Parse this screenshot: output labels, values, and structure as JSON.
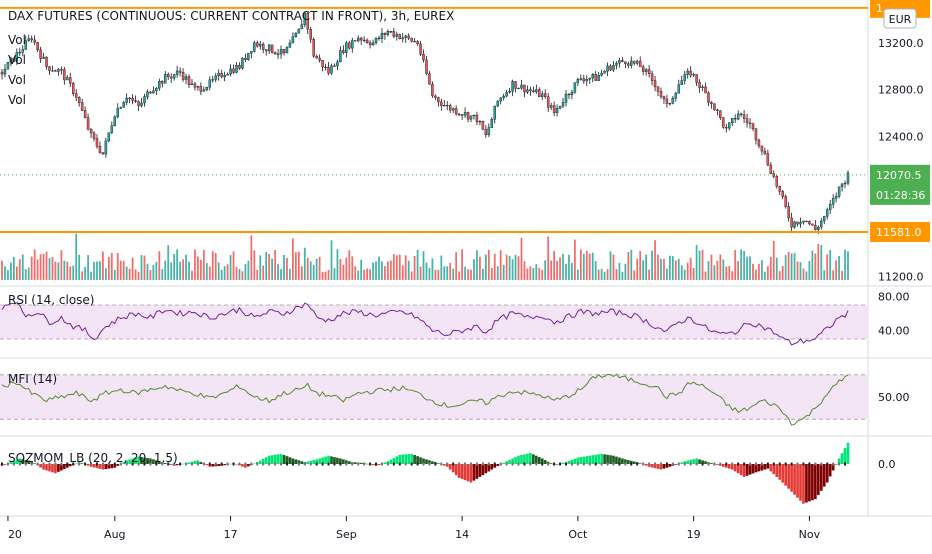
{
  "header": {
    "title": "DAX FUTURES (CONTINUOUS: CURRENT CONTRACT IN FRONT), 3h, EUREX"
  },
  "currency": "EUR",
  "volume_labels": [
    "Vol",
    "Vol",
    "Vol",
    "Vol"
  ],
  "price_tags": {
    "top_line": "1",
    "last_price": "12070.5",
    "countdown": "01:28:36",
    "support_line": "11581.0"
  },
  "colors": {
    "up": "#26a69a",
    "down": "#ef5350",
    "line": "#ff9800",
    "rsi": "#7b1fa2",
    "mfi": "#558b2f",
    "band": "#f3e5f5",
    "mom_up": "#00e676",
    "mom_down": "#e53935",
    "tag_green": "#4caf50"
  },
  "x_axis": [
    "20",
    "Aug",
    "17",
    "Sep",
    "14",
    "Oct",
    "19",
    "Nov"
  ],
  "chart_data": [
    {
      "type": "candlestick",
      "title": "DAX FUTURES (CONTINUOUS: CURRENT CONTRACT IN FRONT), 3h, EUREX",
      "y_ticks": [
        "13200.0",
        "12800.0",
        "12400.0",
        "11200.0"
      ],
      "ylim": [
        11170,
        13550
      ],
      "horizontal_lines": [
        13500,
        11581.0
      ],
      "last_price": 12070.5,
      "anchors": [
        [
          0,
          12950
        ],
        [
          5,
          13100
        ],
        [
          10,
          13250
        ],
        [
          15,
          13000
        ],
        [
          20,
          12950
        ],
        [
          25,
          12750
        ],
        [
          30,
          12400
        ],
        [
          34,
          12250
        ],
        [
          38,
          12600
        ],
        [
          42,
          12750
        ],
        [
          46,
          12650
        ],
        [
          50,
          12800
        ],
        [
          55,
          12900
        ],
        [
          60,
          12950
        ],
        [
          65,
          12800
        ],
        [
          70,
          12850
        ],
        [
          75,
          12950
        ],
        [
          80,
          13000
        ],
        [
          85,
          13200
        ],
        [
          90,
          13150
        ],
        [
          95,
          13100
        ],
        [
          100,
          13300
        ],
        [
          102,
          13450
        ],
        [
          105,
          13100
        ],
        [
          110,
          12950
        ],
        [
          115,
          13150
        ],
        [
          120,
          13250
        ],
        [
          125,
          13200
        ],
        [
          130,
          13300
        ],
        [
          135,
          13250
        ],
        [
          140,
          13200
        ],
        [
          145,
          12750
        ],
        [
          150,
          12650
        ],
        [
          155,
          12600
        ],
        [
          160,
          12550
        ],
        [
          163,
          12400
        ],
        [
          167,
          12700
        ],
        [
          172,
          12850
        ],
        [
          177,
          12800
        ],
        [
          182,
          12750
        ],
        [
          186,
          12600
        ],
        [
          190,
          12750
        ],
        [
          195,
          12900
        ],
        [
          200,
          12900
        ],
        [
          205,
          13000
        ],
        [
          210,
          13050
        ],
        [
          215,
          13000
        ],
        [
          220,
          12850
        ],
        [
          224,
          12650
        ],
        [
          228,
          12850
        ],
        [
          232,
          12950
        ],
        [
          236,
          12800
        ],
        [
          240,
          12650
        ],
        [
          244,
          12450
        ],
        [
          248,
          12600
        ],
        [
          252,
          12500
        ],
        [
          256,
          12300
        ],
        [
          260,
          12050
        ],
        [
          263,
          11850
        ],
        [
          266,
          11650
        ],
        [
          270,
          11700
        ],
        [
          274,
          11600
        ],
        [
          278,
          11750
        ],
        [
          282,
          11950
        ],
        [
          285,
          12070.5
        ]
      ],
      "volume_ylim": [
        0,
        1600
      ]
    },
    {
      "type": "line",
      "title": "RSI (14, close)",
      "y_ticks": [
        "80.00",
        "40.00"
      ],
      "ylim": [
        10,
        90
      ],
      "band": [
        30,
        70
      ],
      "anchors": [
        [
          0,
          68
        ],
        [
          4,
          75
        ],
        [
          8,
          58
        ],
        [
          12,
          62
        ],
        [
          16,
          50
        ],
        [
          20,
          55
        ],
        [
          24,
          45
        ],
        [
          28,
          40
        ],
        [
          31,
          30
        ],
        [
          35,
          45
        ],
        [
          40,
          55
        ],
        [
          45,
          60
        ],
        [
          50,
          55
        ],
        [
          55,
          65
        ],
        [
          60,
          60
        ],
        [
          65,
          62
        ],
        [
          70,
          55
        ],
        [
          75,
          60
        ],
        [
          80,
          65
        ],
        [
          85,
          55
        ],
        [
          90,
          62
        ],
        [
          95,
          60
        ],
        [
          100,
          68
        ],
        [
          103,
          72
        ],
        [
          106,
          55
        ],
        [
          110,
          52
        ],
        [
          115,
          60
        ],
        [
          120,
          62
        ],
        [
          125,
          58
        ],
        [
          130,
          60
        ],
        [
          135,
          62
        ],
        [
          140,
          55
        ],
        [
          145,
          40
        ],
        [
          150,
          35
        ],
        [
          155,
          40
        ],
        [
          160,
          45
        ],
        [
          163,
          38
        ],
        [
          167,
          52
        ],
        [
          172,
          60
        ],
        [
          177,
          55
        ],
        [
          182,
          58
        ],
        [
          186,
          50
        ],
        [
          190,
          55
        ],
        [
          195,
          62
        ],
        [
          200,
          60
        ],
        [
          205,
          62
        ],
        [
          210,
          60
        ],
        [
          215,
          55
        ],
        [
          220,
          45
        ],
        [
          224,
          38
        ],
        [
          228,
          50
        ],
        [
          232,
          55
        ],
        [
          236,
          45
        ],
        [
          240,
          38
        ],
        [
          244,
          35
        ],
        [
          248,
          40
        ],
        [
          252,
          50
        ],
        [
          256,
          45
        ],
        [
          260,
          38
        ],
        [
          263,
          30
        ],
        [
          266,
          25
        ],
        [
          270,
          28
        ],
        [
          274,
          30
        ],
        [
          278,
          42
        ],
        [
          282,
          55
        ],
        [
          285,
          60
        ]
      ]
    },
    {
      "type": "line",
      "title": "MFI (14)",
      "y_ticks": [
        "50.00"
      ],
      "ylim": [
        0,
        100
      ],
      "band": [
        20,
        80
      ],
      "anchors": [
        [
          0,
          65
        ],
        [
          5,
          70
        ],
        [
          10,
          55
        ],
        [
          15,
          45
        ],
        [
          20,
          50
        ],
        [
          25,
          55
        ],
        [
          30,
          45
        ],
        [
          35,
          55
        ],
        [
          40,
          60
        ],
        [
          45,
          55
        ],
        [
          50,
          60
        ],
        [
          55,
          65
        ],
        [
          60,
          58
        ],
        [
          65,
          55
        ],
        [
          70,
          48
        ],
        [
          75,
          55
        ],
        [
          80,
          65
        ],
        [
          85,
          50
        ],
        [
          90,
          45
        ],
        [
          95,
          55
        ],
        [
          100,
          60
        ],
        [
          103,
          65
        ],
        [
          106,
          55
        ],
        [
          110,
          52
        ],
        [
          115,
          45
        ],
        [
          120,
          55
        ],
        [
          125,
          58
        ],
        [
          130,
          60
        ],
        [
          135,
          62
        ],
        [
          140,
          55
        ],
        [
          145,
          45
        ],
        [
          150,
          38
        ],
        [
          155,
          40
        ],
        [
          160,
          45
        ],
        [
          163,
          42
        ],
        [
          167,
          50
        ],
        [
          172,
          58
        ],
        [
          177,
          55
        ],
        [
          182,
          52
        ],
        [
          186,
          45
        ],
        [
          190,
          50
        ],
        [
          195,
          60
        ],
        [
          200,
          78
        ],
        [
          205,
          80
        ],
        [
          210,
          75
        ],
        [
          215,
          70
        ],
        [
          220,
          65
        ],
        [
          224,
          50
        ],
        [
          228,
          55
        ],
        [
          232,
          70
        ],
        [
          236,
          65
        ],
        [
          240,
          55
        ],
        [
          244,
          40
        ],
        [
          248,
          30
        ],
        [
          252,
          35
        ],
        [
          256,
          45
        ],
        [
          260,
          40
        ],
        [
          263,
          30
        ],
        [
          266,
          15
        ],
        [
          270,
          20
        ],
        [
          274,
          35
        ],
        [
          278,
          55
        ],
        [
          282,
          70
        ],
        [
          285,
          80
        ]
      ]
    },
    {
      "type": "bar",
      "title": "SQZMOM_LB (20, 2, 20, 1.5)",
      "y_ticks": [
        "0.0"
      ],
      "ylim": [
        -520,
        260
      ],
      "anchors": [
        [
          0,
          -20
        ],
        [
          6,
          60
        ],
        [
          10,
          30
        ],
        [
          14,
          -60
        ],
        [
          18,
          -100
        ],
        [
          22,
          -40
        ],
        [
          26,
          20
        ],
        [
          30,
          -30
        ],
        [
          34,
          -60
        ],
        [
          38,
          -40
        ],
        [
          42,
          40
        ],
        [
          46,
          80
        ],
        [
          50,
          60
        ],
        [
          54,
          20
        ],
        [
          58,
          -20
        ],
        [
          62,
          10
        ],
        [
          66,
          40
        ],
        [
          70,
          -30
        ],
        [
          74,
          -20
        ],
        [
          78,
          10
        ],
        [
          82,
          -40
        ],
        [
          86,
          20
        ],
        [
          90,
          90
        ],
        [
          94,
          110
        ],
        [
          98,
          60
        ],
        [
          102,
          20
        ],
        [
          106,
          50
        ],
        [
          110,
          90
        ],
        [
          114,
          60
        ],
        [
          118,
          20
        ],
        [
          122,
          10
        ],
        [
          126,
          -20
        ],
        [
          130,
          30
        ],
        [
          134,
          100
        ],
        [
          138,
          110
        ],
        [
          142,
          60
        ],
        [
          146,
          20
        ],
        [
          150,
          -30
        ],
        [
          154,
          -150
        ],
        [
          158,
          -200
        ],
        [
          162,
          -120
        ],
        [
          166,
          -40
        ],
        [
          170,
          30
        ],
        [
          174,
          90
        ],
        [
          178,
          120
        ],
        [
          182,
          60
        ],
        [
          186,
          -10
        ],
        [
          190,
          20
        ],
        [
          194,
          70
        ],
        [
          198,
          90
        ],
        [
          202,
          110
        ],
        [
          206,
          90
        ],
        [
          210,
          50
        ],
        [
          214,
          20
        ],
        [
          218,
          -30
        ],
        [
          222,
          -60
        ],
        [
          226,
          -20
        ],
        [
          230,
          30
        ],
        [
          234,
          60
        ],
        [
          238,
          20
        ],
        [
          242,
          -20
        ],
        [
          246,
          -60
        ],
        [
          250,
          -140
        ],
        [
          254,
          -90
        ],
        [
          258,
          -50
        ],
        [
          262,
          -170
        ],
        [
          266,
          -300
        ],
        [
          270,
          -430
        ],
        [
          274,
          -380
        ],
        [
          278,
          -200
        ],
        [
          282,
          60
        ],
        [
          285,
          230
        ]
      ]
    }
  ]
}
